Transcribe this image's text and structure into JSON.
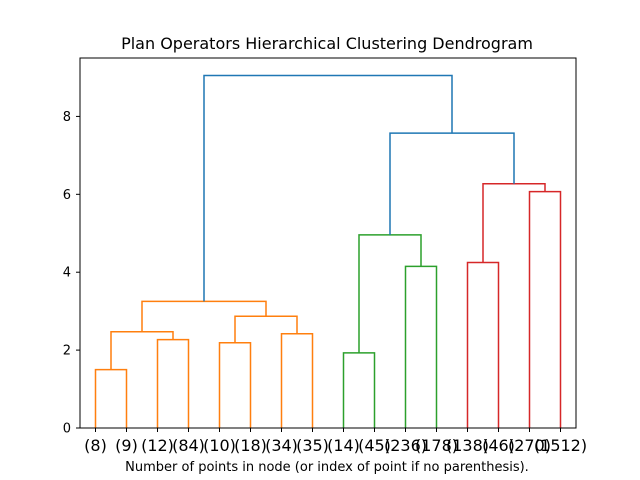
{
  "chart_data": {
    "type": "dendrogram",
    "title": "Plan Operators Hierarchical Clustering Dendrogram",
    "xlabel": "Number of points in node (or index of point if no parenthesis).",
    "ylabel": "",
    "ylim": [
      0,
      9.5
    ],
    "yticks": [
      0,
      2,
      4,
      6,
      8
    ],
    "leaf_labels": [
      "(8)",
      "(9)",
      "(12)",
      "(84)",
      "(10)",
      "(18)",
      "(34)",
      "(35)",
      "(14)",
      "(45)",
      "(236)",
      "(178)",
      "(138)",
      "(46)",
      "(270)",
      "(1512)"
    ],
    "colors": {
      "orange": "#ff7f0e",
      "green": "#2ca02c",
      "red": "#d62728",
      "blue": "#1f77b4"
    },
    "links": [
      {
        "x": [
          0,
          0,
          1,
          1
        ],
        "y": [
          0,
          1.5,
          1.5,
          0
        ],
        "color": "orange"
      },
      {
        "x": [
          2,
          2,
          3,
          3
        ],
        "y": [
          0,
          2.27,
          2.27,
          0
        ],
        "color": "orange"
      },
      {
        "x": [
          0.5,
          0.5,
          2.5,
          2.5
        ],
        "y": [
          1.5,
          2.47,
          2.47,
          2.27
        ],
        "color": "orange"
      },
      {
        "x": [
          4,
          4,
          5,
          5
        ],
        "y": [
          0,
          2.19,
          2.19,
          0
        ],
        "color": "orange"
      },
      {
        "x": [
          6,
          6,
          7,
          7
        ],
        "y": [
          0,
          2.42,
          2.42,
          0
        ],
        "color": "orange"
      },
      {
        "x": [
          4.5,
          4.5,
          6.5,
          6.5
        ],
        "y": [
          2.19,
          2.87,
          2.87,
          2.42
        ],
        "color": "orange"
      },
      {
        "x": [
          1.5,
          1.5,
          5.5,
          5.5
        ],
        "y": [
          2.47,
          3.25,
          3.25,
          2.87
        ],
        "color": "orange"
      },
      {
        "x": [
          8,
          8,
          9,
          9
        ],
        "y": [
          0,
          1.93,
          1.93,
          0
        ],
        "color": "green"
      },
      {
        "x": [
          10,
          10,
          11,
          11
        ],
        "y": [
          0,
          4.15,
          4.15,
          0
        ],
        "color": "green"
      },
      {
        "x": [
          8.5,
          8.5,
          10.5,
          10.5
        ],
        "y": [
          1.93,
          4.96,
          4.96,
          4.15
        ],
        "color": "green"
      },
      {
        "x": [
          12,
          12,
          13,
          13
        ],
        "y": [
          0,
          4.25,
          4.25,
          0
        ],
        "color": "red"
      },
      {
        "x": [
          14,
          14,
          15,
          15
        ],
        "y": [
          0,
          6.07,
          6.07,
          0
        ],
        "color": "red"
      },
      {
        "x": [
          12.5,
          12.5,
          14.5,
          14.5
        ],
        "y": [
          4.25,
          6.27,
          6.27,
          6.07
        ],
        "color": "red"
      },
      {
        "x": [
          9.5,
          9.5,
          13.5,
          13.5
        ],
        "y": [
          4.96,
          7.57,
          7.57,
          6.27
        ],
        "color": "blue"
      },
      {
        "x": [
          3.5,
          3.5,
          11.5,
          11.5
        ],
        "y": [
          3.25,
          9.05,
          9.05,
          7.57
        ],
        "color": "blue"
      }
    ],
    "grid": false,
    "legend": "none"
  }
}
